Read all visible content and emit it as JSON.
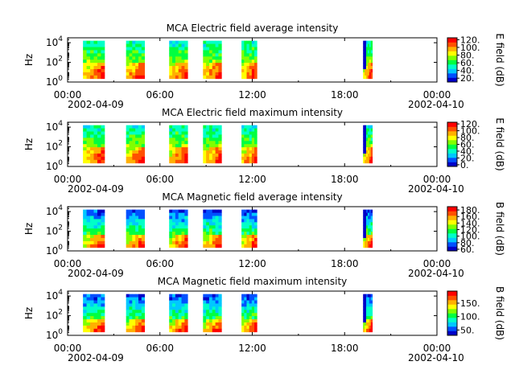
{
  "figure": {
    "x_tick_labels": [
      "00:00",
      "06:00",
      "12:00",
      "18:00",
      "00:00"
    ],
    "x_tick_hours": [
      0,
      6,
      12,
      18,
      24
    ],
    "date_start": "2002-04-09",
    "date_end": "2002-04-10",
    "colormap": [
      "#0000c8",
      "#0050ff",
      "#00c8ff",
      "#00ffc8",
      "#00ff40",
      "#80ff00",
      "#ffff00",
      "#ffb000",
      "#ff5000",
      "#ff0000"
    ]
  },
  "chart_data": [
    {
      "type": "heatmap",
      "title": "MCA  Electric field average intensity",
      "ylabel": "Hz",
      "y_tick_labels": [
        {
          "base": "10",
          "exp": "0"
        },
        {
          "base": "10",
          "exp": "2"
        },
        {
          "base": "10",
          "exp": "4"
        }
      ],
      "ylim_log10": [
        0,
        4.5
      ],
      "xlim_hours": [
        0,
        24
      ],
      "colorbar_label": "E field (dB)",
      "colorbar_ticks": [
        20,
        40,
        60,
        80,
        100,
        120
      ],
      "colorbar_range": [
        10,
        125
      ],
      "passes_hours": [
        [
          1.0,
          2.4
        ],
        [
          3.8,
          5.0
        ],
        [
          6.6,
          7.8
        ],
        [
          8.8,
          10.0
        ],
        [
          11.3,
          12.3
        ],
        [
          19.2,
          19.8
        ]
      ]
    },
    {
      "type": "heatmap",
      "title": "MCA  Electric field maximum intensity",
      "ylabel": "Hz",
      "y_tick_labels": [
        {
          "base": "10",
          "exp": "0"
        },
        {
          "base": "10",
          "exp": "2"
        },
        {
          "base": "10",
          "exp": "4"
        }
      ],
      "ylim_log10": [
        0,
        4.5
      ],
      "xlim_hours": [
        0,
        24
      ],
      "colorbar_label": "E field (dB)",
      "colorbar_ticks": [
        0,
        20,
        40,
        60,
        80,
        100,
        120
      ],
      "colorbar_range": [
        -5,
        125
      ],
      "passes_hours": [
        [
          1.0,
          2.4
        ],
        [
          3.8,
          5.0
        ],
        [
          6.6,
          7.8
        ],
        [
          8.8,
          10.0
        ],
        [
          11.3,
          12.3
        ],
        [
          19.2,
          19.8
        ]
      ]
    },
    {
      "type": "heatmap",
      "title": "MCA  Magnetic field average intensity",
      "ylabel": "Hz",
      "y_tick_labels": [
        {
          "base": "10",
          "exp": "0"
        },
        {
          "base": "10",
          "exp": "2"
        },
        {
          "base": "10",
          "exp": "4"
        }
      ],
      "ylim_log10": [
        0,
        4.5
      ],
      "xlim_hours": [
        0,
        24
      ],
      "colorbar_label": "B field (dB)",
      "colorbar_ticks": [
        60,
        80,
        100,
        120,
        140,
        160,
        180
      ],
      "colorbar_range": [
        55,
        190
      ],
      "passes_hours": [
        [
          1.0,
          2.4
        ],
        [
          3.8,
          5.0
        ],
        [
          6.6,
          7.8
        ],
        [
          8.8,
          10.0
        ],
        [
          11.3,
          12.3
        ],
        [
          19.2,
          19.8
        ]
      ]
    },
    {
      "type": "heatmap",
      "title": "MCA  Magnetic field maximum intensity",
      "ylabel": "Hz",
      "y_tick_labels": [
        {
          "base": "10",
          "exp": "0"
        },
        {
          "base": "10",
          "exp": "2"
        },
        {
          "base": "10",
          "exp": "4"
        }
      ],
      "ylim_log10": [
        0,
        4.5
      ],
      "xlim_hours": [
        0,
        24
      ],
      "colorbar_label": "B field (dB)",
      "colorbar_ticks": [
        50,
        100,
        150
      ],
      "colorbar_range": [
        30,
        195
      ],
      "passes_hours": [
        [
          1.0,
          2.4
        ],
        [
          3.8,
          5.0
        ],
        [
          6.6,
          7.8
        ],
        [
          8.8,
          10.0
        ],
        [
          11.3,
          12.3
        ],
        [
          19.2,
          19.8
        ]
      ]
    }
  ]
}
